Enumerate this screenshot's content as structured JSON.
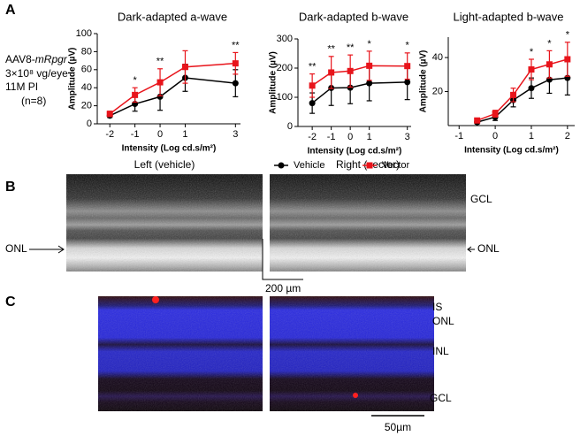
{
  "panels": {
    "a": "A",
    "b": "B",
    "c": "C"
  },
  "treatment": {
    "vector_prefix": "AAV8-",
    "vector_gene": "mRpgr",
    "dose": "3×10⁸ vg/eye",
    "time": "11M PI",
    "n": "(n=8)"
  },
  "panel_b": {
    "left_title": "Left (vehicle)",
    "right_title": "Right (vector)",
    "gcl": "GCL",
    "onl_left": "ONL",
    "onl_right": "ONL",
    "scale": "200 µm"
  },
  "panel_c": {
    "is": "IS",
    "onl": "ONL",
    "inl": "INL",
    "gcl": "GCL",
    "scale": "50µm"
  },
  "chart_data": [
    {
      "type": "line",
      "title": "Dark-adapted a-wave",
      "x_label": "Intensity (Log cd.s/m²)",
      "y_label": "Amplitude (µV)",
      "x": [
        -2,
        -1,
        0,
        1,
        3
      ],
      "xlim": [
        -2.5,
        3.2
      ],
      "xticks": [
        -2,
        -1,
        0,
        1,
        3
      ],
      "ylim": [
        0,
        100
      ],
      "yticks": [
        0,
        20,
        40,
        60,
        80,
        100
      ],
      "series": [
        {
          "name": "Vehicle",
          "color": "#000000",
          "marker": "circle",
          "values": [
            9,
            22,
            30,
            51,
            45
          ],
          "errors": [
            2,
            8,
            15,
            15,
            15
          ]
        },
        {
          "name": "Vector",
          "color": "#e8141b",
          "marker": "square",
          "values": [
            11,
            32,
            46,
            63,
            67
          ],
          "errors": [
            3,
            8,
            15,
            18,
            12
          ]
        }
      ],
      "significance": [
        null,
        "*",
        "**",
        null,
        "**"
      ]
    },
    {
      "type": "line",
      "title": "Dark-adapted b-wave",
      "x_label": "Intensity (Log cd.s/m²)",
      "y_label": "Amplitude (µV)",
      "x": [
        -2,
        -1,
        0,
        1,
        3
      ],
      "xlim": [
        -2.75,
        3.2
      ],
      "xticks": [
        -2,
        -1,
        0,
        1,
        3
      ],
      "ylim": [
        0,
        300
      ],
      "yticks": [
        0,
        100,
        200,
        300
      ],
      "series": [
        {
          "name": "Vehicle",
          "color": "#000000",
          "marker": "circle",
          "values": [
            80,
            132,
            133,
            148,
            152
          ],
          "errors": [
            35,
            60,
            55,
            60,
            60
          ]
        },
        {
          "name": "Vector",
          "color": "#e8141b",
          "marker": "square",
          "values": [
            140,
            185,
            190,
            208,
            207
          ],
          "errors": [
            40,
            55,
            55,
            50,
            45
          ]
        }
      ],
      "significance": [
        "**",
        "**",
        "**",
        "*",
        "*"
      ]
    },
    {
      "type": "line",
      "title": "Light-adapted b-wave",
      "x_label": "Intensity (Log cd.s/m²)",
      "y_label": "Amplitude (µV)",
      "x": [
        -0.5,
        0,
        0.5,
        1,
        1.5,
        2
      ],
      "xlim": [
        -1.3,
        2.2
      ],
      "xticks": [
        -1,
        0,
        1,
        2
      ],
      "ylim": [
        0,
        52
      ],
      "yticks": [
        20,
        40
      ],
      "series": [
        {
          "name": "Vehicle",
          "color": "#000000",
          "marker": "circle",
          "values": [
            2,
            5,
            15,
            22,
            27,
            28
          ],
          "errors": [
            1,
            2,
            4,
            6,
            8,
            10
          ]
        },
        {
          "name": "Vector",
          "color": "#e8141b",
          "marker": "square",
          "values": [
            3,
            7,
            18,
            33,
            36,
            39
          ],
          "errors": [
            1,
            2,
            4,
            6,
            8,
            10
          ]
        }
      ],
      "significance": [
        null,
        null,
        null,
        "*",
        "*",
        "*"
      ]
    }
  ]
}
